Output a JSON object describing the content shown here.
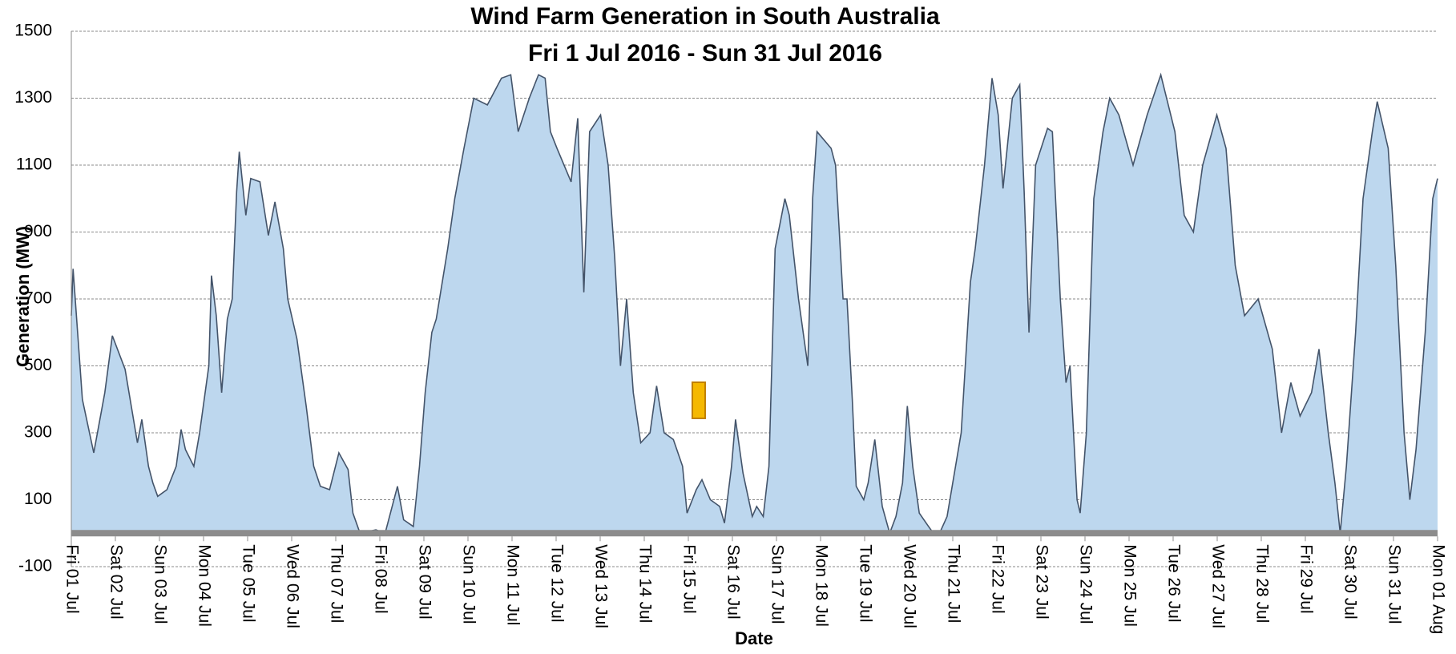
{
  "chart_data": {
    "type": "area",
    "title": "Wind Farm Generation in South Australia",
    "subtitle": "Fri 1 Jul 2016  -  Sun 31 Jul 2016",
    "x_label": "Date",
    "y_label": "Generation (MW)",
    "color": "#bdd7ee",
    "line_color": "#44546a",
    "grid": true,
    "x": [
      0,
      0.04,
      0.25,
      0.51,
      0.76,
      0.93,
      1.22,
      1.5,
      1.6,
      1.75,
      1.85,
      1.96,
      2.17,
      2.38,
      2.49,
      2.59,
      2.78,
      2.91,
      3.12,
      3.18,
      3.29,
      3.41,
      3.54,
      3.65,
      3.75,
      3.81,
      3.96,
      4.07,
      4.28,
      4.47,
      4.62,
      4.81,
      4.91,
      5.12,
      5.33,
      5.5,
      5.65,
      5.86,
      6.07,
      6.28,
      6.39,
      6.55,
      6.91,
      7.12,
      7.4,
      7.54,
      7.76,
      7.9,
      8.03,
      8.18,
      8.28,
      8.54,
      8.7,
      8.91,
      9.13,
      9.44,
      9.76,
      9.97,
      10.14,
      10.39,
      10.6,
      10.75,
      10.87,
      11.02,
      11.34,
      11.49,
      11.63,
      11.76,
      12.01,
      12.18,
      12.33,
      12.46,
      12.6,
      12.75,
      12.92,
      13.13,
      13.28,
      13.45,
      13.66,
      13.87,
      13.97,
      14.18,
      14.31,
      14.5,
      14.71,
      14.82,
      14.98,
      15.07,
      15.24,
      15.45,
      15.55,
      15.7,
      15.83,
      15.97,
      16.19,
      16.29,
      16.5,
      16.71,
      16.82,
      16.92,
      17.24,
      17.34,
      17.51,
      17.6,
      17.72,
      17.81,
      17.98,
      18.08,
      18.23,
      18.4,
      18.57,
      18.71,
      18.86,
      18.97,
      19.09,
      19.24,
      19.45,
      19.56,
      19.7,
      19.87,
      20.19,
      20.4,
      20.51,
      20.72,
      20.89,
      21.03,
      21.14,
      21.35,
      21.52,
      21.62,
      21.73,
      21.88,
      22.15,
      22.26,
      22.44,
      22.57,
      22.66,
      22.82,
      22.89,
      23.03,
      23.2,
      23.41,
      23.56,
      23.77,
      24.09,
      24.41,
      24.72,
      25.04,
      25.25,
      25.46,
      25.67,
      25.99,
      26.2,
      26.41,
      26.62,
      26.93,
      27.25,
      27.46,
      27.67,
      27.88,
      28.14,
      28.31,
      28.52,
      28.67,
      28.79,
      28.93,
      29.14,
      29.31,
      29.52,
      29.63,
      29.88,
      30.05,
      30.24,
      30.37,
      30.51,
      30.72,
      30.89,
      31
    ],
    "values": [
      650,
      790,
      400,
      240,
      420,
      590,
      490,
      270,
      340,
      200,
      150,
      110,
      130,
      200,
      310,
      250,
      200,
      300,
      500,
      770,
      650,
      420,
      640,
      700,
      1020,
      1140,
      950,
      1060,
      1050,
      890,
      990,
      850,
      700,
      580,
      380,
      200,
      140,
      130,
      240,
      190,
      60,
      0,
      10,
      0,
      140,
      40,
      20,
      200,
      420,
      600,
      640,
      850,
      1000,
      1150,
      1300,
      1280,
      1360,
      1370,
      1200,
      1300,
      1370,
      1360,
      1200,
      1150,
      1050,
      1240,
      720,
      1200,
      1250,
      1100,
      820,
      500,
      700,
      420,
      270,
      300,
      440,
      300,
      280,
      200,
      60,
      130,
      160,
      100,
      80,
      30,
      200,
      340,
      180,
      50,
      80,
      50,
      200,
      850,
      1000,
      950,
      700,
      500,
      1000,
      1200,
      1150,
      1100,
      700,
      700,
      400,
      140,
      100,
      150,
      280,
      80,
      0,
      50,
      150,
      380,
      200,
      60,
      20,
      0,
      0,
      50,
      300,
      750,
      850,
      1100,
      1360,
      1250,
      1030,
      1300,
      1340,
      1020,
      600,
      1100,
      1210,
      1200,
      700,
      450,
      500,
      100,
      60,
      300,
      1000,
      1200,
      1300,
      1250,
      1100,
      1250,
      1370,
      1200,
      950,
      900,
      1100,
      1250,
      1150,
      800,
      650,
      700,
      550,
      300,
      450,
      350,
      420,
      550,
      300,
      150,
      0,
      200,
      600,
      1000,
      1200,
      1290,
      1150,
      800,
      300,
      100,
      250,
      600,
      1000,
      1060
    ],
    "xlim": [
      0,
      31
    ],
    "xticks": [
      {
        "value": 0,
        "label": "Fri 01 Jul"
      },
      {
        "value": 1,
        "label": "Sat 02 Jul"
      },
      {
        "value": 2,
        "label": "Sun 03 Jul"
      },
      {
        "value": 3,
        "label": "Mon 04 Jul"
      },
      {
        "value": 4,
        "label": "Tue 05 Jul"
      },
      {
        "value": 5,
        "label": "Wed 06 Jul"
      },
      {
        "value": 6,
        "label": "Thu 07 Jul"
      },
      {
        "value": 7,
        "label": "Fri 08 Jul"
      },
      {
        "value": 8,
        "label": "Sat 09 Jul"
      },
      {
        "value": 9,
        "label": "Sun 10 Jul"
      },
      {
        "value": 10,
        "label": "Mon 11 Jul"
      },
      {
        "value": 11,
        "label": "Tue 12 Jul"
      },
      {
        "value": 12,
        "label": "Wed 13 Jul"
      },
      {
        "value": 13,
        "label": "Thu 14 Jul"
      },
      {
        "value": 14,
        "label": "Fri 15 Jul"
      },
      {
        "value": 15,
        "label": "Sat 16 Jul"
      },
      {
        "value": 16,
        "label": "Sun 17 Jul"
      },
      {
        "value": 17,
        "label": "Mon 18 Jul"
      },
      {
        "value": 18,
        "label": "Tue 19 Jul"
      },
      {
        "value": 19,
        "label": "Wed 20 Jul"
      },
      {
        "value": 20,
        "label": "Thu 21 Jul"
      },
      {
        "value": 21,
        "label": "Fri 22 Jul"
      },
      {
        "value": 22,
        "label": "Sat 23 Jul"
      },
      {
        "value": 23,
        "label": "Sun 24 Jul"
      },
      {
        "value": 24,
        "label": "Mon 25 Jul"
      },
      {
        "value": 25,
        "label": "Tue 26 Jul"
      },
      {
        "value": 26,
        "label": "Wed 27 Jul"
      },
      {
        "value": 27,
        "label": "Thu 28 Jul"
      },
      {
        "value": 28,
        "label": "Fri 29 Jul"
      },
      {
        "value": 29,
        "label": "Sat 30 Jul"
      },
      {
        "value": 30,
        "label": "Sun 31 Jul"
      },
      {
        "value": 31,
        "label": "Mon 01 Aug"
      }
    ],
    "ylim": [
      -100,
      1500
    ],
    "yticks": [
      -100,
      100,
      300,
      500,
      700,
      900,
      1100,
      1300,
      1500
    ]
  }
}
